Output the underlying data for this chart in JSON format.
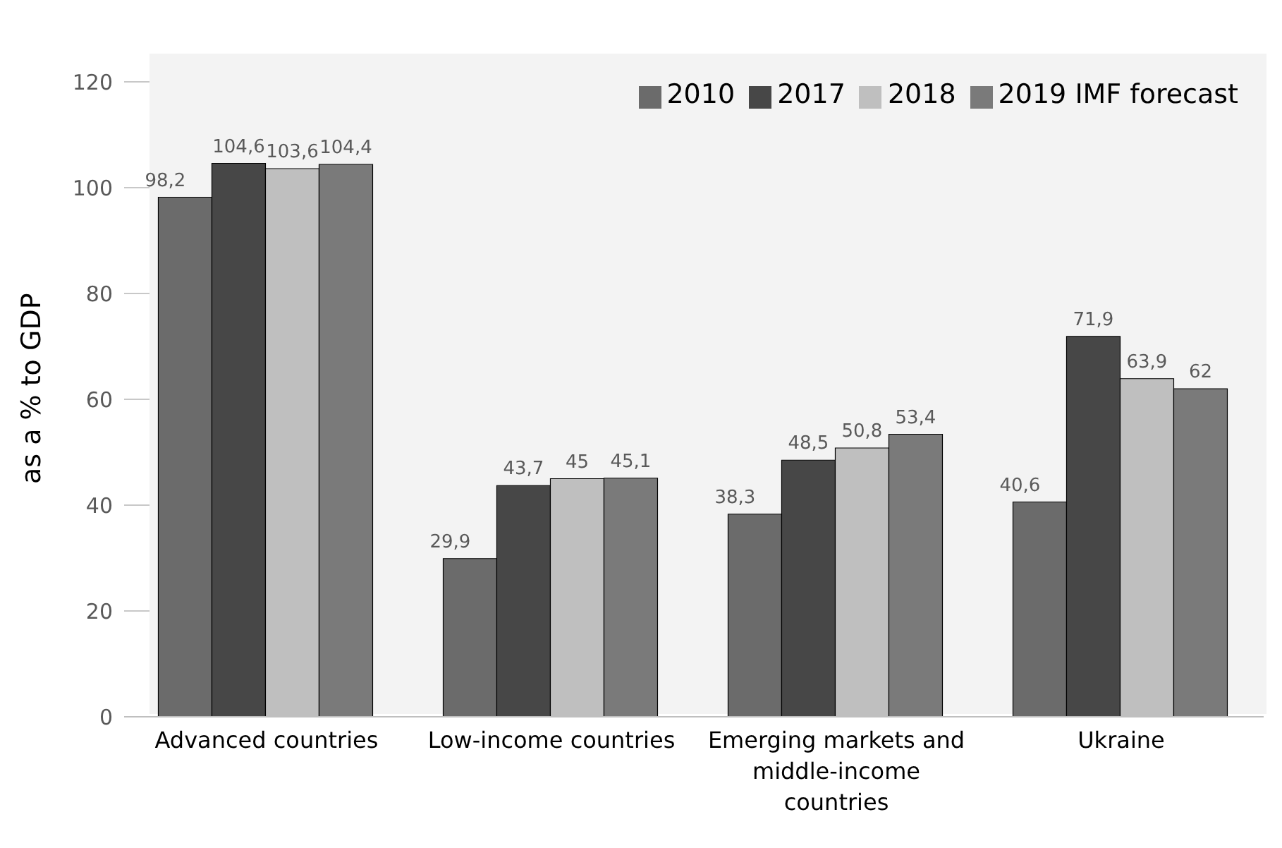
{
  "chart_data": {
    "type": "bar",
    "ylabel": "as a % to GDP",
    "categories": [
      "Advanced countries",
      "Low-income countries",
      "Emerging markets and middle-income countries",
      "Ukraine"
    ],
    "series": [
      {
        "name": "2010",
        "color": "#6b6b6b",
        "values": [
          98.2,
          29.9,
          38.3,
          40.6
        ],
        "value_labels": [
          "98,2",
          "29,9",
          "38,3",
          "40,6"
        ]
      },
      {
        "name": "2017",
        "color": "#474747",
        "values": [
          104.6,
          43.7,
          48.5,
          71.9
        ],
        "value_labels": [
          "104,6",
          "43,7",
          "48,5",
          "71,9"
        ]
      },
      {
        "name": "2018",
        "color": "#bfbfbf",
        "values": [
          103.6,
          45,
          50.8,
          63.9
        ],
        "value_labels": [
          "103,6",
          "45",
          "50,8",
          "63,9"
        ]
      },
      {
        "name": "2019 IMF forecast",
        "color": "#7a7a7a",
        "values": [
          104.4,
          45.1,
          53.4,
          62
        ],
        "value_labels": [
          "104,4",
          "45,1",
          "53,4",
          "62"
        ]
      }
    ],
    "ylim": [
      0,
      120
    ],
    "yticks": [
      0,
      20,
      40,
      60,
      80,
      100,
      120
    ],
    "grid": "y",
    "legend": "top right"
  }
}
